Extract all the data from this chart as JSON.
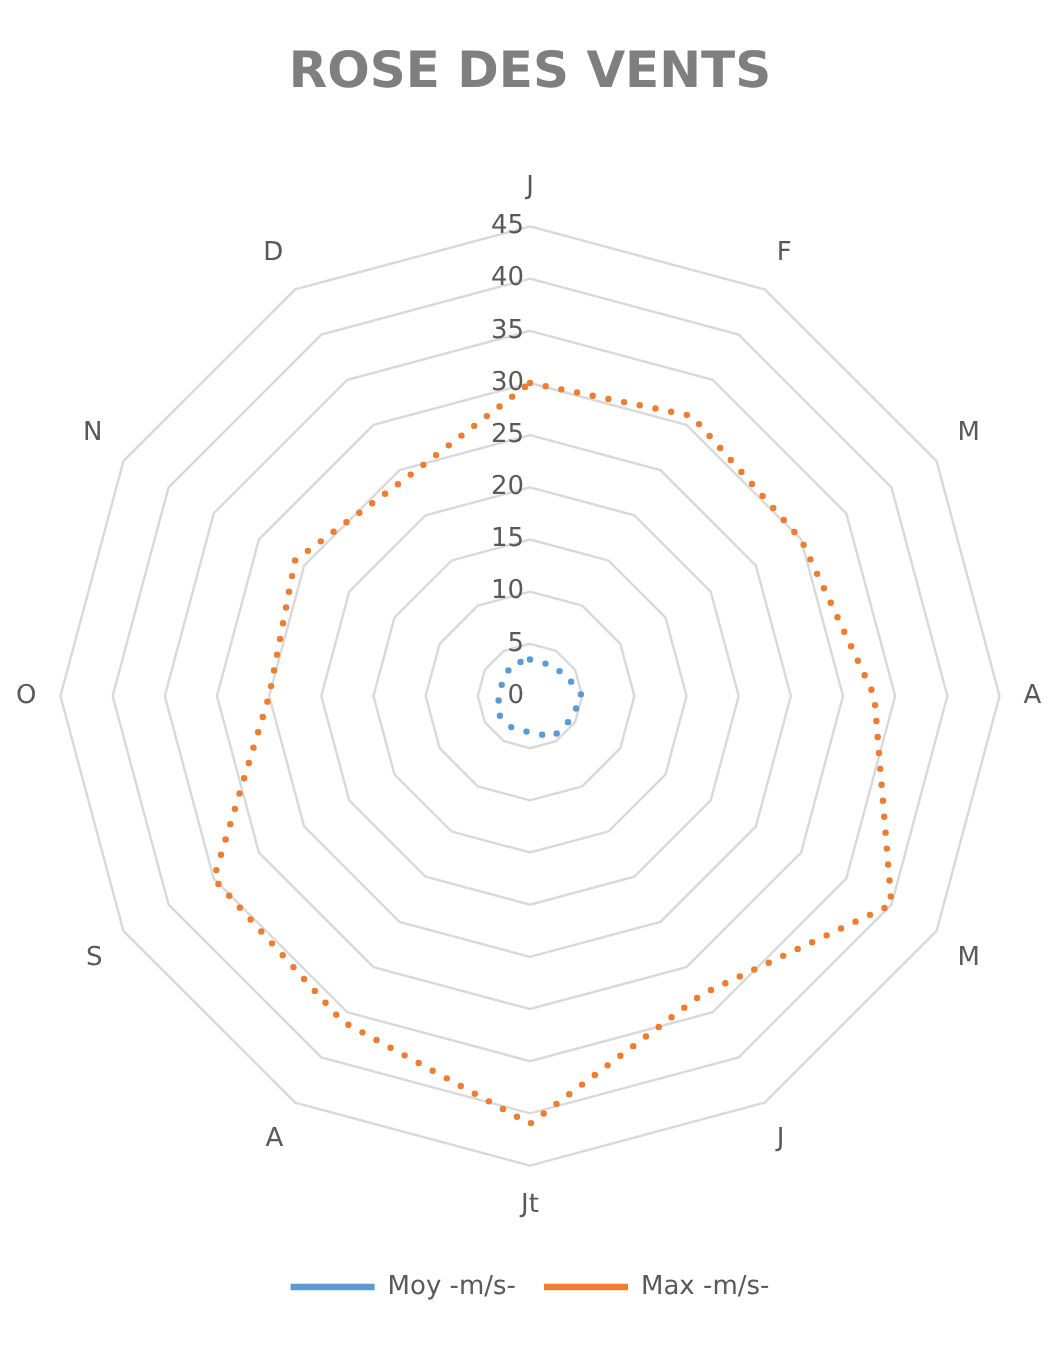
{
  "chart_data": {
    "type": "radar",
    "title": "ROSE DES VENTS",
    "categories": [
      "J",
      "F",
      "M",
      "A",
      "M",
      "J",
      "Jt",
      "A",
      "S",
      "O",
      "N",
      "D"
    ],
    "series": [
      {
        "name": "Moy -m/s-",
        "color": "#5b9bd5",
        "values": [
          3.5,
          3.5,
          4,
          5,
          4.5,
          4.5,
          3.5,
          3.5,
          3.5,
          3,
          3,
          3.5
        ]
      },
      {
        "name": "Max -m/s-",
        "color": "#ed7d31",
        "values": [
          30,
          31,
          30,
          33,
          40,
          33,
          41,
          36,
          35,
          25,
          26,
          24
        ]
      }
    ],
    "ylim": [
      0,
      45
    ],
    "yticks": [
      0,
      5,
      10,
      15,
      20,
      25,
      30,
      35,
      40,
      45
    ],
    "grid": true,
    "legend": "bottom",
    "marker": "none",
    "line_style": "dotted"
  }
}
